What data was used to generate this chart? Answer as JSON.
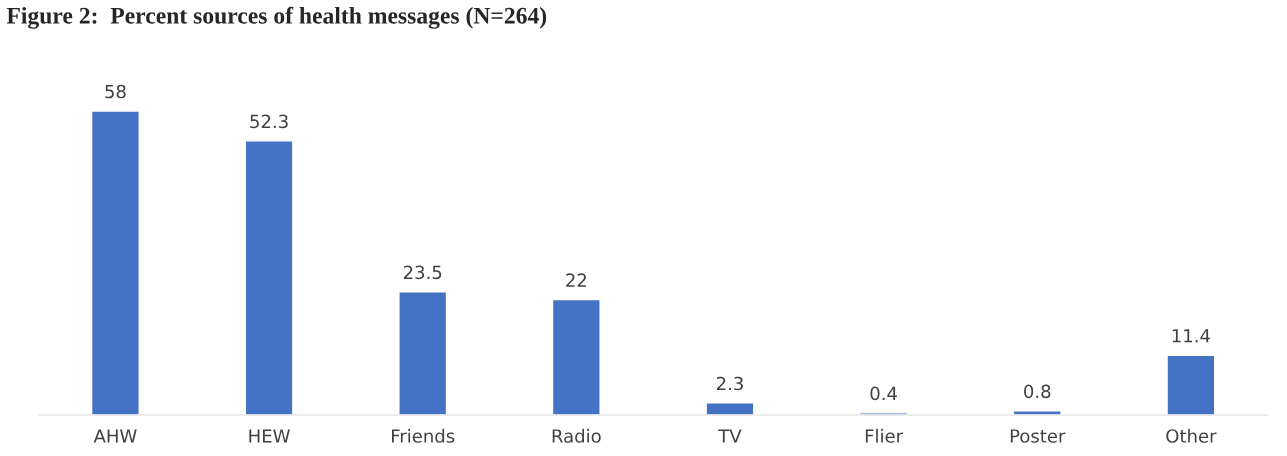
{
  "chart_data": {
    "type": "bar",
    "title": "Figure 2:  Percent sources of health messages (N=264)",
    "categories": [
      "AHW",
      "HEW",
      "Friends",
      "Radio",
      "TV",
      "Flier",
      "Poster",
      "Other"
    ],
    "values": [
      58,
      52.3,
      23.5,
      22,
      2.3,
      0.4,
      0.8,
      11.4
    ],
    "color": "#4472c4",
    "data_labels": true,
    "grid": false,
    "legend": false
  }
}
